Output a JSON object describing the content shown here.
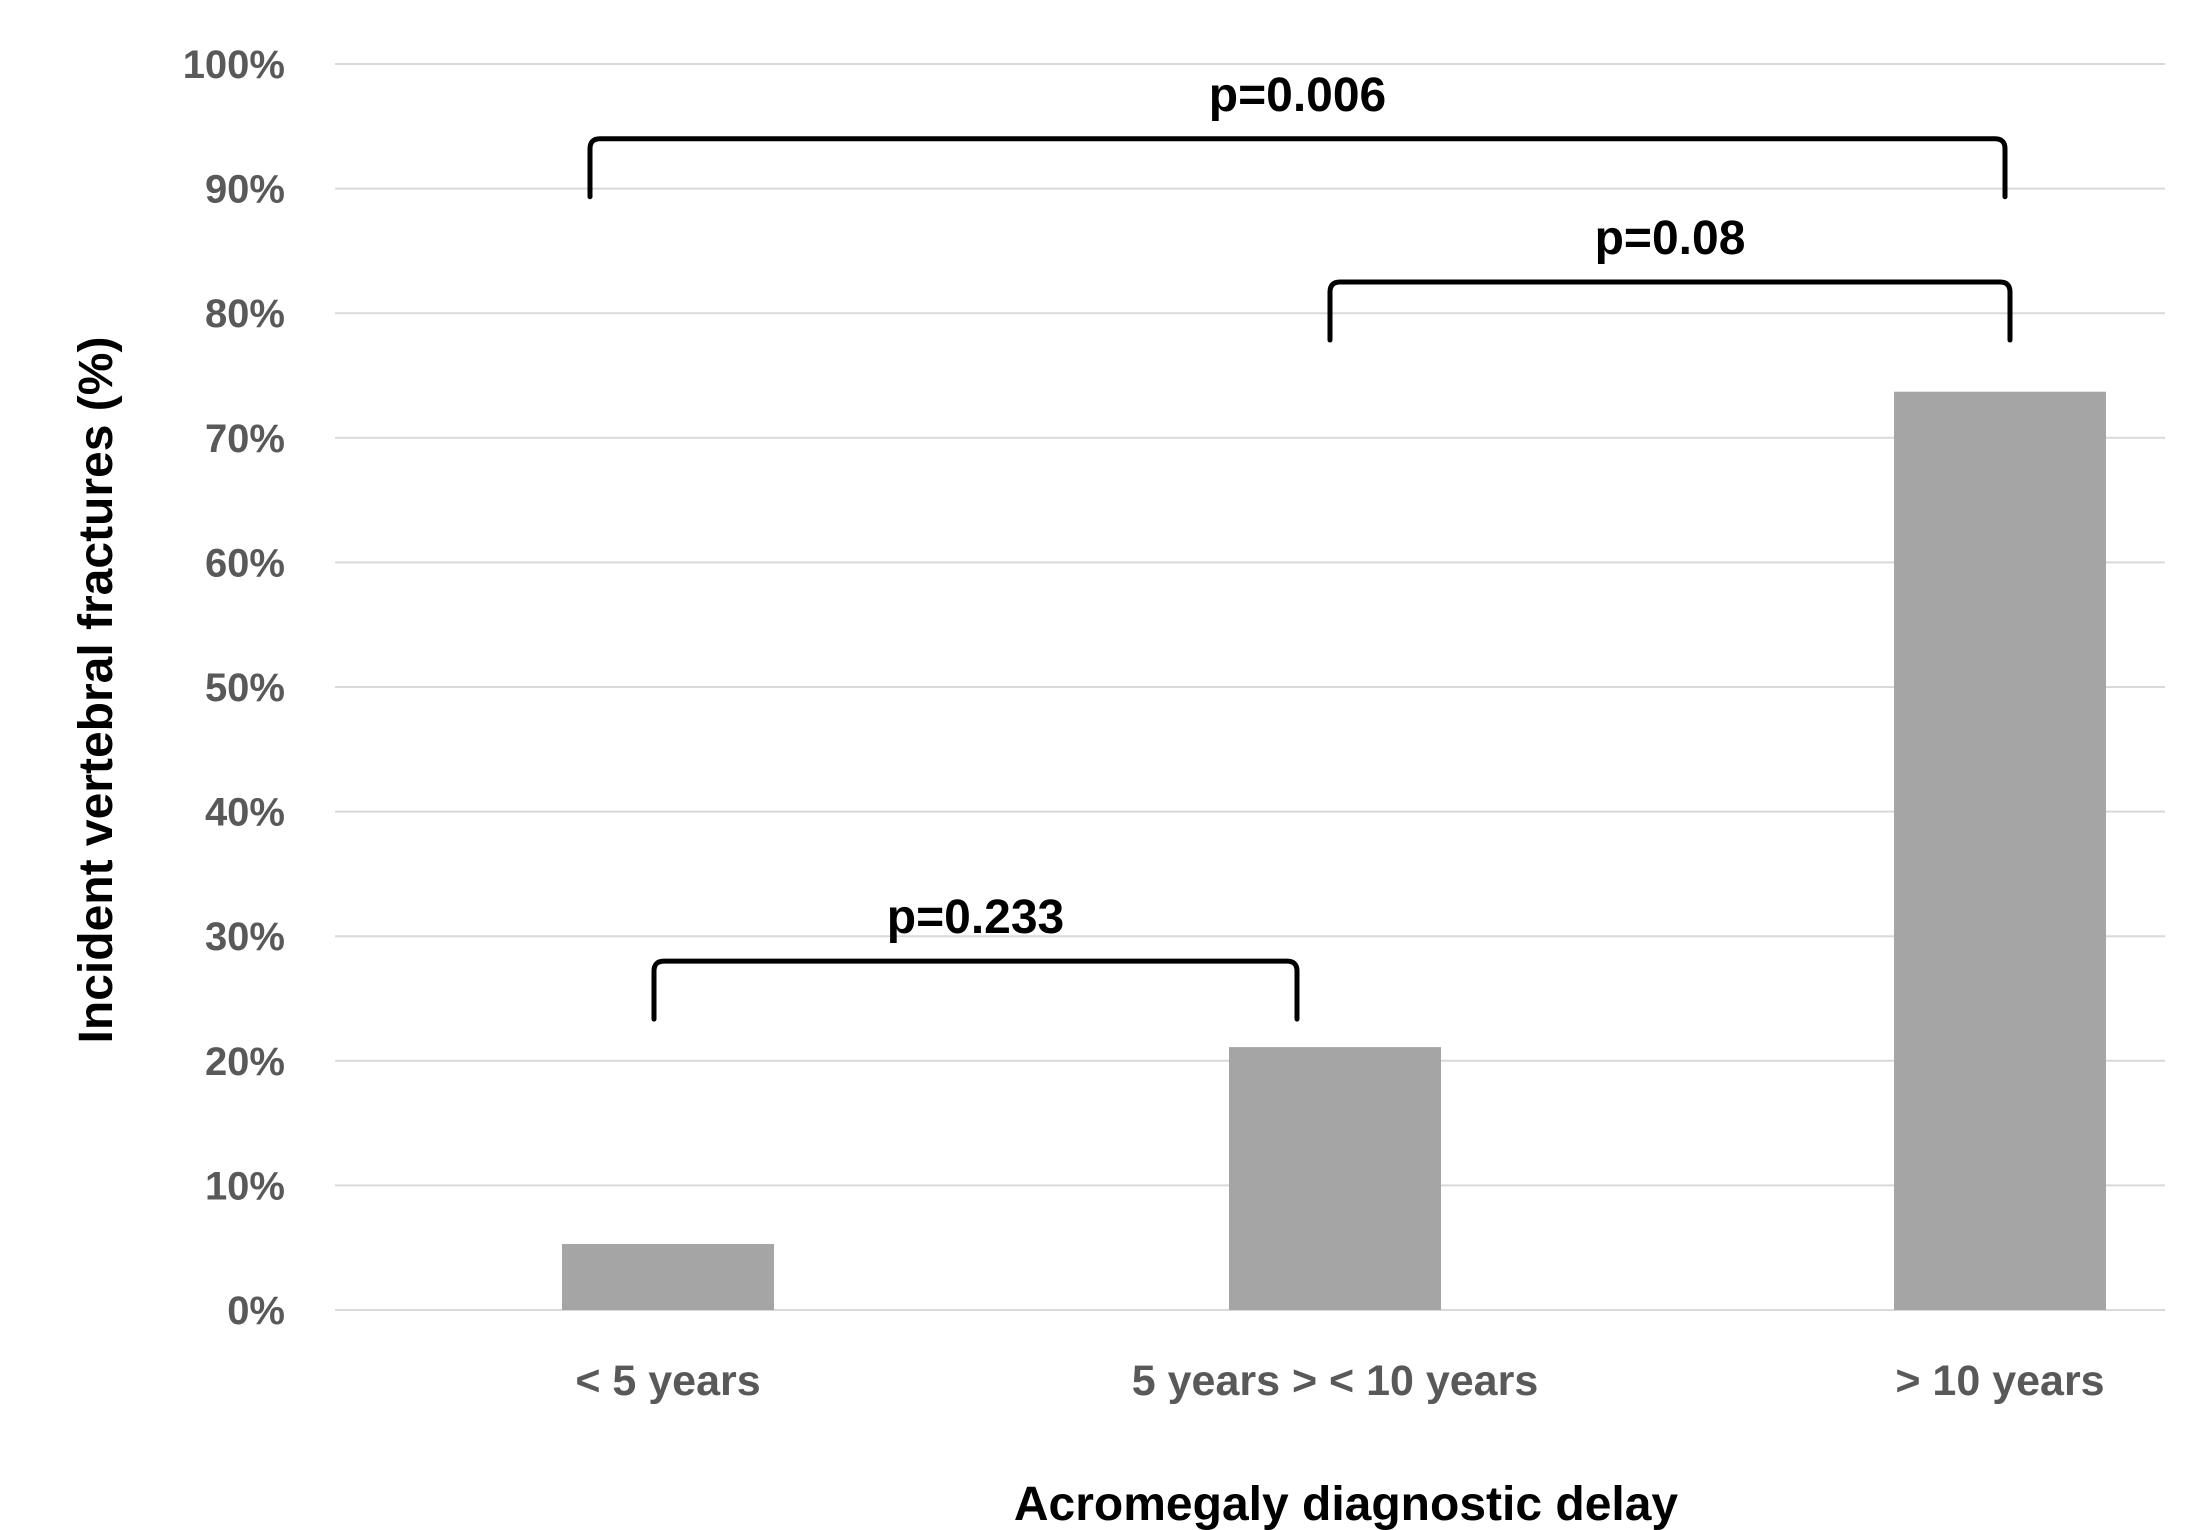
{
  "chart_data": {
    "type": "bar",
    "title": "",
    "xlabel": "Acromegaly diagnostic delay",
    "ylabel": "Incident vertebral fractures (%)",
    "ylim": [
      0,
      100
    ],
    "yticks": [
      0,
      10,
      20,
      30,
      40,
      50,
      60,
      70,
      80,
      90,
      100
    ],
    "ytick_labels": [
      "0%",
      "10%",
      "20%",
      "30%",
      "40%",
      "50%",
      "60%",
      "70%",
      "80%",
      "90%",
      "100%"
    ],
    "grid": true,
    "legend": "none",
    "bar_color": "#a5a5a5",
    "categories": [
      "< 5 years",
      "5  years >  < 10 years",
      "> 10 years"
    ],
    "values": [
      5.3,
      21.1,
      73.7
    ],
    "annotations": [
      {
        "label": "p=0.233",
        "from": 0,
        "to": 1,
        "level": 28
      },
      {
        "label": "p=0.08",
        "from": 1,
        "to": 2,
        "level": 82.5
      },
      {
        "label": "p=0.006",
        "from": 0,
        "to": 2,
        "level": 94
      }
    ]
  }
}
